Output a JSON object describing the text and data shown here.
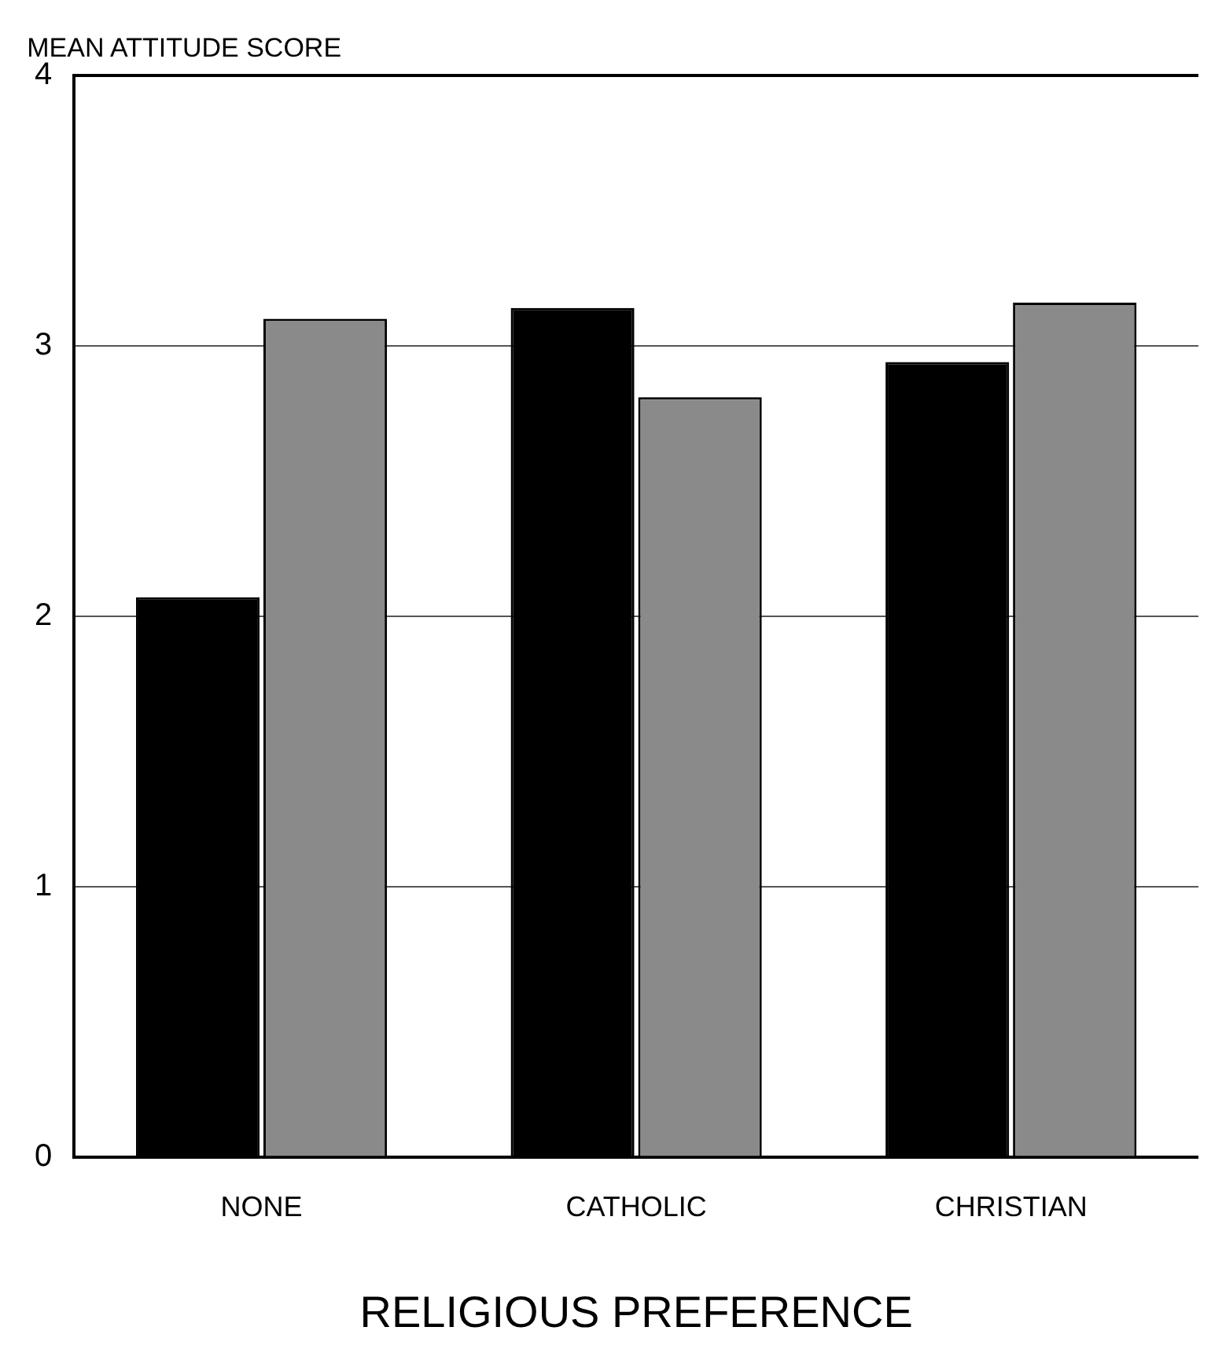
{
  "chart_data": {
    "type": "bar",
    "ylabel": "MEAN ATTITUDE SCORE",
    "xlabel": "RELIGIOUS PREFERENCE",
    "categories": [
      "NONE",
      "CATHOLIC",
      "CHRISTIAN"
    ],
    "series": [
      {
        "color": "#000000",
        "values": [
          2.07,
          3.14,
          2.94
        ]
      },
      {
        "color": "#8a8a8a",
        "values": [
          3.1,
          2.81,
          3.16
        ]
      }
    ],
    "ylim": [
      0,
      4
    ],
    "yticks": [
      0,
      1,
      2,
      3,
      4
    ],
    "grid": "y",
    "legend": false
  }
}
